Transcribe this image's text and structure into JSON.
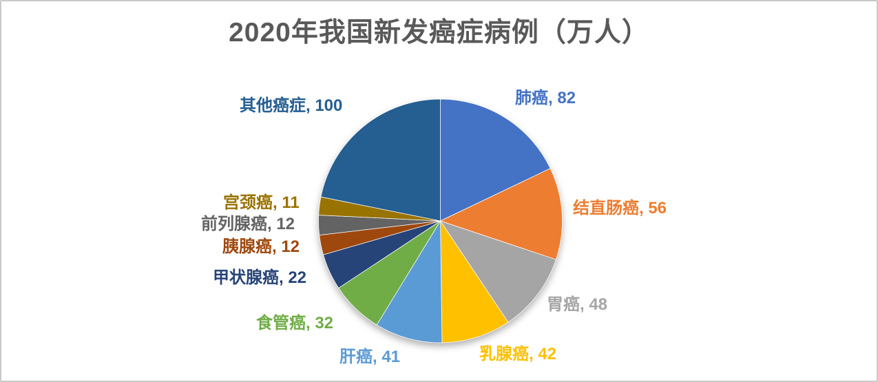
{
  "title": "2020年我国新发癌症病例（万人）",
  "title_color": "#595959",
  "background_color": "#ffffff",
  "border_color": "#c9c9c9",
  "chart_data": {
    "type": "pie",
    "title": "2020年我国新发癌症病例（万人）",
    "unit": "万人",
    "direction": "clockwise",
    "start_angle_deg": 0,
    "legend": "none",
    "data_labels": "category-and-value, outside, colored to match slice",
    "categories": [
      "肺癌",
      "结直肠癌",
      "胃癌",
      "乳腺癌",
      "肝癌",
      "食管癌",
      "甲状腺癌",
      "胰腺癌",
      "前列腺癌",
      "宫颈癌",
      "其他癌症"
    ],
    "values": [
      82,
      56,
      48,
      42,
      41,
      32,
      22,
      12,
      12,
      11,
      100
    ],
    "slices": [
      {
        "name": "肺癌",
        "value": 82,
        "color": "#4472C4",
        "label": "肺癌, 82"
      },
      {
        "name": "结直肠癌",
        "value": 56,
        "color": "#ED7D31",
        "label": "结直肠癌, 56"
      },
      {
        "name": "胃癌",
        "value": 48,
        "color": "#A5A5A5",
        "label": "胃癌, 48"
      },
      {
        "name": "乳腺癌",
        "value": 42,
        "color": "#FFC000",
        "label": "乳腺癌, 42"
      },
      {
        "name": "肝癌",
        "value": 41,
        "color": "#5B9BD5",
        "label": "肝癌, 41"
      },
      {
        "name": "食管癌",
        "value": 32,
        "color": "#70AD47",
        "label": "食管癌, 32"
      },
      {
        "name": "甲状腺癌",
        "value": 22,
        "color": "#264478",
        "label": "甲状腺癌, 22"
      },
      {
        "name": "胰腺癌",
        "value": 12,
        "color": "#9E480E",
        "label": "胰腺癌, 12"
      },
      {
        "name": "前列腺癌",
        "value": 12,
        "color": "#636363",
        "label": "前列腺癌, 12"
      },
      {
        "name": "宫颈癌",
        "value": 11,
        "color": "#997300",
        "label": "宫颈癌, 11"
      },
      {
        "name": "其他癌症",
        "value": 100,
        "color": "#255E91",
        "label": "其他癌症, 100"
      }
    ]
  }
}
